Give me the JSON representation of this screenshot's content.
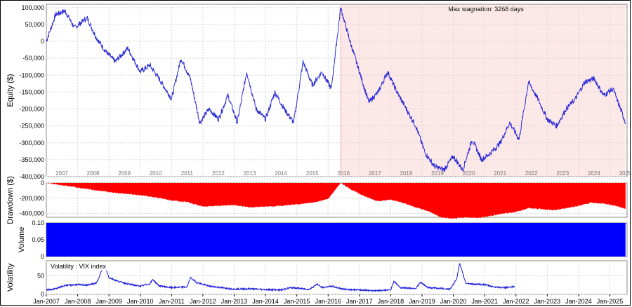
{
  "colors": {
    "equity_line": "#2b2bd6",
    "drawdown_fill": "#ff0000",
    "volume_fill": "#0000ff",
    "vix_line": "#1a1adc",
    "stagnation_shade": "#fde8e8",
    "stagnation_text": "#f5a0a0"
  },
  "stagnation_label": "Max stagnation: 3268 days",
  "equity_panel": {
    "ylabel": "Equity ($)",
    "yticks": [
      "100,000",
      "50,000",
      "0",
      "-50,000",
      "-100,000",
      "-150,000",
      "-200,000",
      "-250,000",
      "-300,000",
      "-350,000",
      "-400,000"
    ],
    "year_labels": [
      "2007",
      "2008",
      "2009",
      "2010",
      "2011",
      "2012",
      "2013",
      "2014",
      "2015",
      "2016",
      "2017",
      "2018",
      "2019",
      "2020",
      "2021",
      "2022",
      "2023",
      "2024",
      "2025"
    ]
  },
  "drawdown_panel": {
    "ylabel": "Drawdown ($)",
    "yticks": [
      "0",
      "-200,000",
      "-400,000"
    ]
  },
  "volume_panel": {
    "ylabel": "Volume",
    "yticks": [
      "0.10",
      "0.05",
      "0"
    ]
  },
  "volatility_panel": {
    "ylabel": "Volatility",
    "legend": "Volatility : VIX index",
    "yticks": [
      "50",
      "0"
    ]
  },
  "x_labels": [
    "Jan-2007",
    "Jan-2008",
    "Jan-2009",
    "Jan-2010",
    "Jan-2011",
    "Jan-2012",
    "Jan-2013",
    "Jan-2014",
    "Jan-2015",
    "Jan-2016",
    "Jan-2017",
    "Jan-2018",
    "Jan-2019",
    "Jan-2020",
    "Jan-2021",
    "Jan-2022",
    "Jan-2023",
    "Jan-2024",
    "Jan-2025"
  ],
  "chart_data": [
    {
      "type": "line",
      "title": "",
      "ylabel": "Equity ($)",
      "ylim": [
        -400000,
        110000
      ],
      "grid": true,
      "annotation": "Max stagnation: 3268 days",
      "stagnation_range": [
        "2016.4",
        "2025.5"
      ],
      "x": [
        2007.0,
        2007.3,
        2007.6,
        2007.9,
        2008.3,
        2008.6,
        2008.9,
        2009.2,
        2009.6,
        2010.0,
        2010.3,
        2010.6,
        2011.0,
        2011.3,
        2011.6,
        2011.9,
        2012.2,
        2012.5,
        2012.8,
        2013.1,
        2013.4,
        2013.7,
        2014.0,
        2014.3,
        2014.6,
        2014.9,
        2015.2,
        2015.5,
        2015.8,
        2016.1,
        2016.4,
        2016.7,
        2017.0,
        2017.3,
        2017.6,
        2017.9,
        2018.2,
        2018.5,
        2018.8,
        2019.1,
        2019.4,
        2019.7,
        2020.0,
        2020.3,
        2020.6,
        2020.9,
        2021.2,
        2021.5,
        2021.8,
        2022.1,
        2022.4,
        2022.7,
        2023.0,
        2023.3,
        2023.6,
        2023.9,
        2024.2,
        2024.5,
        2024.8,
        2025.1,
        2025.5
      ],
      "values": [
        0,
        80000,
        90000,
        40000,
        70000,
        10000,
        -30000,
        -60000,
        -20000,
        -90000,
        -70000,
        -110000,
        -170000,
        -50000,
        -110000,
        -240000,
        -200000,
        -230000,
        -160000,
        -240000,
        -90000,
        -200000,
        -230000,
        -150000,
        -200000,
        -240000,
        -60000,
        -130000,
        -90000,
        -140000,
        100000,
        0,
        -90000,
        -180000,
        -150000,
        -90000,
        -150000,
        -200000,
        -250000,
        -330000,
        -370000,
        -380000,
        -340000,
        -380000,
        -290000,
        -350000,
        -330000,
        -300000,
        -240000,
        -290000,
        -120000,
        -170000,
        -230000,
        -250000,
        -200000,
        -170000,
        -120000,
        -110000,
        -160000,
        -140000,
        -240000
      ]
    },
    {
      "type": "area",
      "title": "",
      "ylabel": "Drawdown ($)",
      "ylim": [
        -450000,
        0
      ],
      "x": [
        2007.0,
        2007.5,
        2008.0,
        2008.5,
        2009.0,
        2009.5,
        2010.0,
        2010.5,
        2011.0,
        2011.5,
        2012.0,
        2012.5,
        2013.0,
        2013.5,
        2014.0,
        2014.5,
        2015.0,
        2015.5,
        2016.0,
        2016.4,
        2016.8,
        2017.2,
        2017.6,
        2018.0,
        2018.4,
        2018.8,
        2019.2,
        2019.6,
        2020.0,
        2020.4,
        2020.8,
        2021.2,
        2021.6,
        2022.0,
        2022.4,
        2022.8,
        2023.2,
        2023.6,
        2024.0,
        2024.4,
        2024.8,
        2025.2,
        2025.5
      ],
      "values": [
        0,
        -30000,
        -60000,
        -90000,
        -120000,
        -140000,
        -160000,
        -190000,
        -230000,
        -250000,
        -310000,
        -300000,
        -290000,
        -320000,
        -310000,
        -300000,
        -280000,
        -260000,
        -210000,
        0,
        -100000,
        -180000,
        -240000,
        -220000,
        -260000,
        -320000,
        -370000,
        -450000,
        -470000,
        -450000,
        -460000,
        -430000,
        -400000,
        -380000,
        -330000,
        -340000,
        -360000,
        -330000,
        -300000,
        -260000,
        -270000,
        -300000,
        -340000
      ]
    },
    {
      "type": "bar",
      "title": "",
      "ylabel": "Volume",
      "ylim": [
        0,
        0.1
      ],
      "x_range": [
        "2007.0",
        "2025.5"
      ],
      "values": [
        0.1
      ]
    },
    {
      "type": "line",
      "title": "",
      "ylabel": "Volatility",
      "series": [
        {
          "name": "Volatility : VIX index"
        }
      ],
      "ylim": [
        0,
        90
      ],
      "x": [
        2007.0,
        2007.3,
        2007.6,
        2008.0,
        2008.3,
        2008.6,
        2008.75,
        2008.85,
        2009.0,
        2009.3,
        2009.6,
        2010.0,
        2010.3,
        2010.4,
        2010.6,
        2011.0,
        2011.5,
        2011.6,
        2011.8,
        2012.2,
        2012.6,
        2013.0,
        2013.5,
        2014.0,
        2014.5,
        2014.8,
        2015.0,
        2015.4,
        2015.65,
        2015.8,
        2016.1,
        2016.5,
        2017.0,
        2017.5,
        2018.0,
        2018.1,
        2018.3,
        2018.8,
        2018.95,
        2019.2,
        2019.6,
        2019.9,
        2020.1,
        2020.2,
        2020.4,
        2020.7,
        2021.0,
        2021.3,
        2021.6,
        2021.95
      ],
      "values": [
        12,
        15,
        24,
        26,
        25,
        30,
        60,
        80,
        45,
        35,
        28,
        22,
        28,
        40,
        23,
        18,
        20,
        45,
        32,
        22,
        18,
        14,
        15,
        13,
        12,
        18,
        17,
        13,
        28,
        18,
        22,
        14,
        12,
        10,
        12,
        36,
        18,
        16,
        32,
        18,
        16,
        14,
        40,
        82,
        30,
        27,
        26,
        20,
        18,
        20
      ]
    }
  ]
}
